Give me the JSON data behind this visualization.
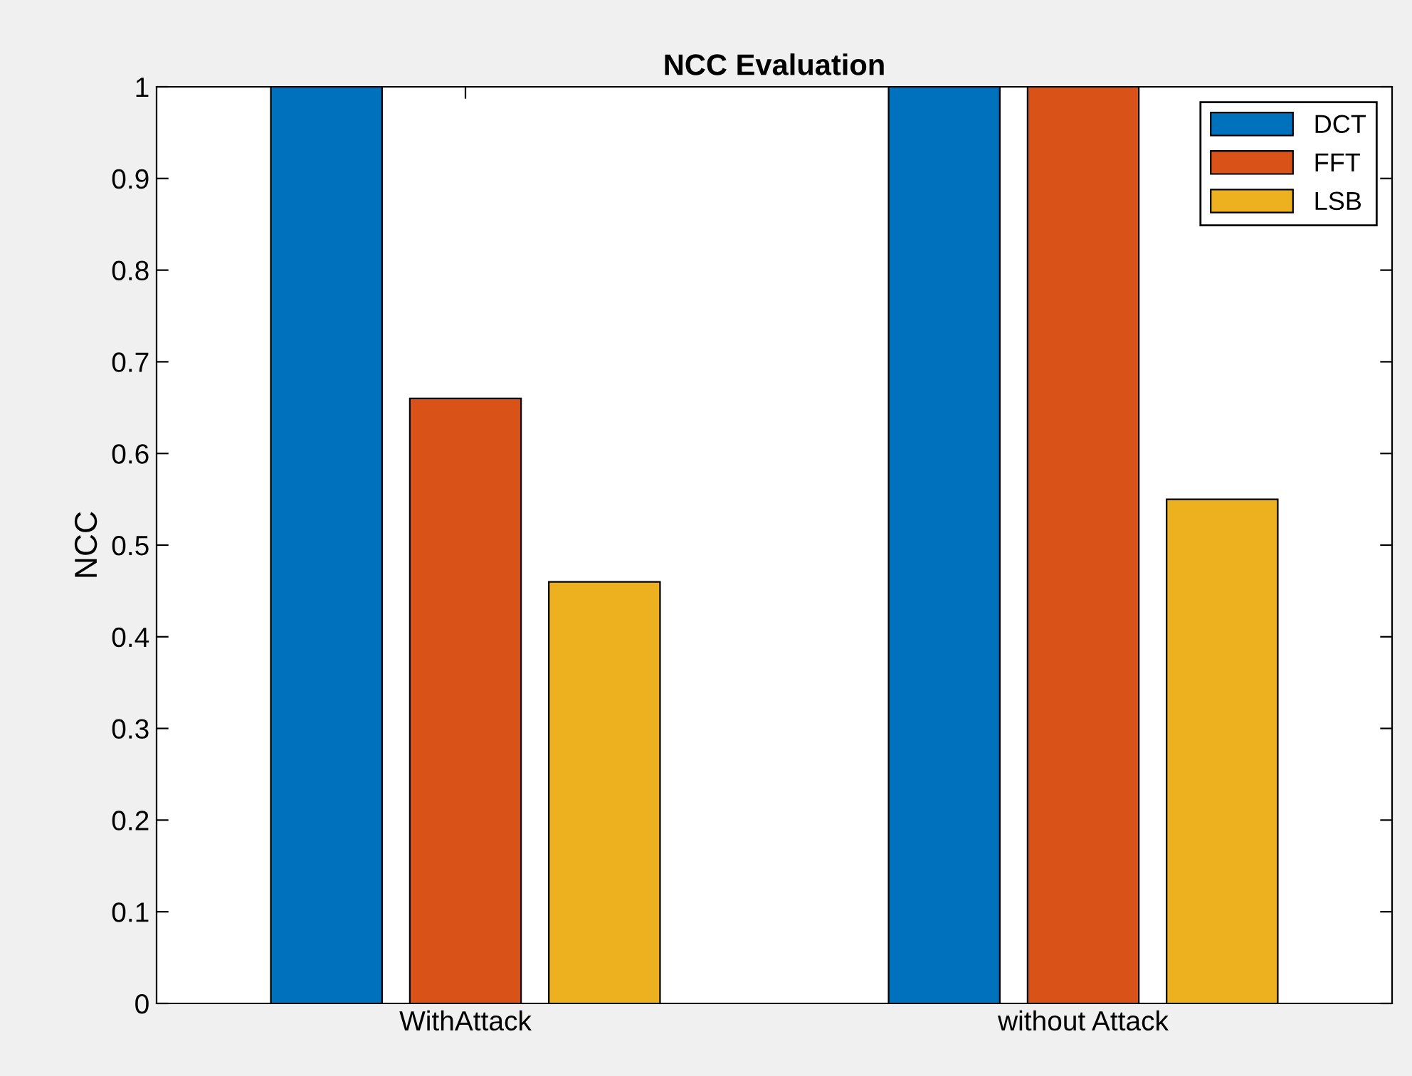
{
  "chart_data": {
    "type": "bar",
    "title": "NCC Evaluation",
    "ylabel": "NCC",
    "categories": [
      "WithAttack",
      "without Attack"
    ],
    "series": [
      {
        "name": "DCT",
        "color": "#0072bd",
        "values": [
          1,
          1
        ]
      },
      {
        "name": "FFT",
        "color": "#d95319",
        "values": [
          0.66,
          1
        ]
      },
      {
        "name": "LSB",
        "color": "#edb120",
        "values": [
          0.46,
          0.55
        ]
      }
    ],
    "ylim": [
      0,
      1
    ],
    "yticks": [
      0,
      0.1,
      0.2,
      0.3,
      0.4,
      0.5,
      0.6,
      0.7,
      0.8,
      0.9,
      1
    ],
    "grid": false,
    "legend": "top right"
  }
}
